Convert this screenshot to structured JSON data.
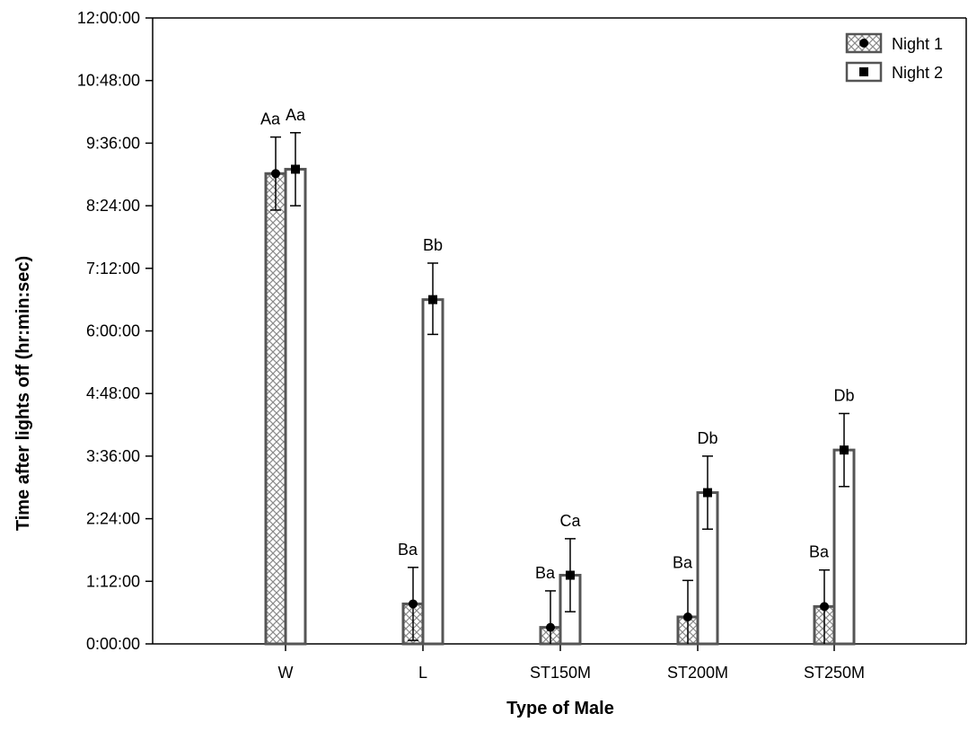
{
  "chart_data": {
    "type": "bar",
    "title": "",
    "xlabel": "Type of Male",
    "ylabel": "Time after lights off (hr:min:sec)",
    "categories": [
      "W",
      "L",
      "ST150M",
      "ST200M",
      "ST250M"
    ],
    "y_unit": "minutes",
    "ylim": [
      0,
      720
    ],
    "yticks": [
      0,
      72,
      144,
      216,
      288,
      360,
      432,
      504,
      576,
      648,
      720
    ],
    "ytick_labels": [
      "0:00:00",
      "1:12:00",
      "2:24:00",
      "3:36:00",
      "4:48:00",
      "6:00:00",
      "7:12:00",
      "8:24:00",
      "9:36:00",
      "10:48:00",
      "12:00:00"
    ],
    "grid": false,
    "legend_position": "top-right",
    "series": [
      {
        "name": "Night 1",
        "pattern": "crosshatch",
        "marker": "circle",
        "values": [
          541,
          46,
          19,
          31,
          43
        ],
        "error_low": [
          499,
          4,
          0,
          0,
          0
        ],
        "error_high": [
          583,
          88,
          61,
          73,
          85
        ],
        "labels": [
          "Aa",
          "Ba",
          "Ba",
          "Ba",
          "Ba"
        ]
      },
      {
        "name": "Night 2",
        "pattern": "none",
        "marker": "square",
        "values": [
          546,
          396,
          79,
          174,
          223
        ],
        "error_low": [
          504,
          356,
          37,
          132,
          181
        ],
        "error_high": [
          588,
          438,
          121,
          216,
          265
        ],
        "labels": [
          "Aa",
          "Bb",
          "Ca",
          "Db",
          "Db"
        ]
      }
    ]
  },
  "colors": {
    "bar_outline": "#555555",
    "hatch": "#8a8a8a",
    "axis": "#000000",
    "background": "#ffffff"
  }
}
